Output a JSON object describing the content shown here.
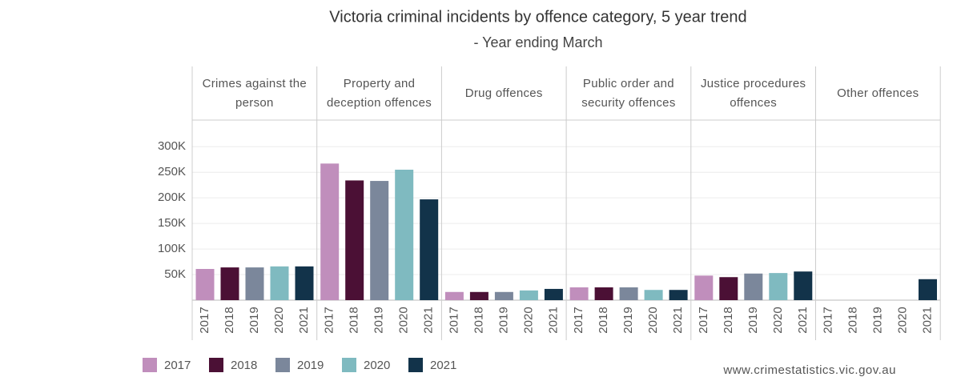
{
  "chart_data": {
    "type": "bar",
    "title": "Victoria criminal incidents by offence category, 5 year trend",
    "subtitle": "- Year ending March",
    "categories": [
      "Crimes against the person",
      "Property and deception offences",
      "Drug offences",
      "Public order and security offences",
      "Justice procedures offences",
      "Other offences"
    ],
    "series": [
      {
        "name": "2017",
        "color": "#c08ebc",
        "values": [
          61000,
          267000,
          16000,
          25000,
          48000,
          0
        ]
      },
      {
        "name": "2018",
        "color": "#4b1035",
        "values": [
          64000,
          234000,
          16000,
          25000,
          45000,
          0
        ]
      },
      {
        "name": "2019",
        "color": "#7b879b",
        "values": [
          64000,
          233000,
          16000,
          25000,
          52000,
          0
        ]
      },
      {
        "name": "2020",
        "color": "#7fbac0",
        "values": [
          66000,
          255000,
          19000,
          20000,
          53000,
          0
        ]
      },
      {
        "name": "2021",
        "color": "#12334a",
        "values": [
          66000,
          197000,
          22000,
          20000,
          56000,
          41000
        ]
      }
    ],
    "ylim": [
      0,
      352000
    ],
    "yticks": [
      {
        "value": 50000,
        "label": "50K"
      },
      {
        "value": 100000,
        "label": "100K"
      },
      {
        "value": 150000,
        "label": "150K"
      },
      {
        "value": 200000,
        "label": "200K"
      },
      {
        "value": 250000,
        "label": "250K"
      },
      {
        "value": 300000,
        "label": "300K"
      }
    ],
    "grid": true,
    "legend": "bottom-left",
    "source": "www.crimestatistics.vic.gov.au"
  }
}
